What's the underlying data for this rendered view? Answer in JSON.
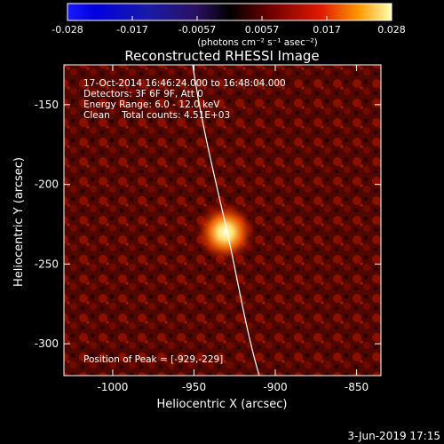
{
  "colorbar": {
    "ticks": [
      "-0.028",
      "-0.017",
      "-0.0057",
      "0.0057",
      "0.017",
      "0.028"
    ],
    "unit_text": "(photons cm⁻² s⁻¹ asec⁻²)"
  },
  "title": "Reconstructed RHESSI Image",
  "info": {
    "line1": "17-Oct-2014 16:46:24.000 to 16:48:04.000",
    "line2": "Detectors: 3F 6F 9F, Att 0",
    "line3": "Energy Range: 6.0 - 12.0 keV",
    "line4": "Clean    Total counts: 4.51E+03"
  },
  "peak_label": "Position of Peak = [-929,-229]",
  "x_axis": {
    "label": "Heliocentric X (arcsec)",
    "range": [
      -1030,
      -835
    ],
    "ticks": [
      -1000,
      -950,
      -900,
      -850
    ],
    "tick_labels": [
      "-1000",
      "-950",
      "-900",
      "-850"
    ]
  },
  "y_axis": {
    "label": "Heliocentric Y (arcsec)",
    "range": [
      -320,
      -125
    ],
    "ticks": [
      -150,
      -200,
      -250,
      -300
    ],
    "tick_labels": [
      "-150",
      "-200",
      "-250",
      "-300"
    ]
  },
  "peak": {
    "x": -929,
    "y": -229
  },
  "date_stamp": "3-Jun-2019 17:15"
}
